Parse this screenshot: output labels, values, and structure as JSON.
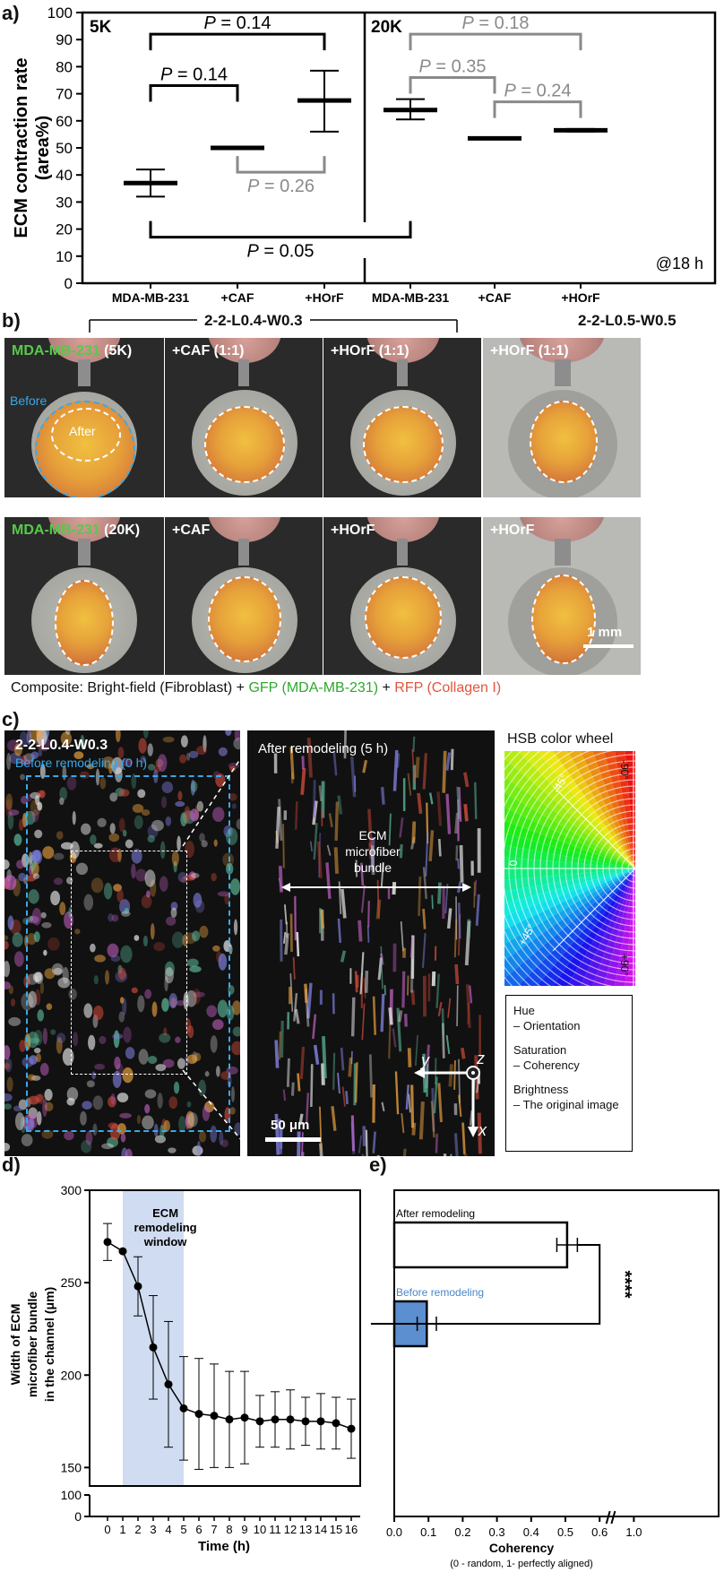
{
  "panel_labels": {
    "a": "a)",
    "b": "b)",
    "c": "c)",
    "d": "d)",
    "e": "e)"
  },
  "chart_data": [
    {
      "panel": "a",
      "type": "scatter",
      "ylabel_line1": "ECM contraction rate",
      "ylabel_line2": "(area%)",
      "ylim": [
        0,
        100
      ],
      "yticks": [
        0,
        10,
        20,
        30,
        40,
        50,
        60,
        70,
        80,
        90,
        100
      ],
      "categories": [
        "MDA-MB-231",
        "+CAF",
        "+HOrF",
        "MDA-MB-231",
        "+CAF",
        "+HOrF"
      ],
      "group_labels": [
        "5K",
        "20K"
      ],
      "series": [
        {
          "values": [
            37,
            50,
            67.5,
            64,
            53.5,
            56.5
          ],
          "error_low": [
            32,
            49.5,
            56,
            60.5,
            53.5,
            56
          ],
          "error_high": [
            42,
            50.5,
            78.5,
            68,
            53.5,
            57
          ]
        }
      ],
      "comparisons": [
        {
          "from": 0,
          "to": 2,
          "p_prefix": "P",
          "p_text": " = 0.14",
          "y": 92,
          "color": "#000000"
        },
        {
          "from": 0,
          "to": 1,
          "p_prefix": "P",
          "p_text": " = 0.14",
          "y": 73,
          "color": "#000000"
        },
        {
          "from": 1,
          "to": 2,
          "p_prefix": "P",
          "p_text": " = 0.26",
          "y": 41,
          "color": "#8a8a8a"
        },
        {
          "from": 3,
          "to": 5,
          "p_prefix": "P",
          "p_text": " = 0.18",
          "y": 92,
          "color": "#8a8a8a"
        },
        {
          "from": 3,
          "to": 4,
          "p_prefix": "P",
          "p_text": " = 0.35",
          "y": 76,
          "color": "#8a8a8a"
        },
        {
          "from": 4,
          "to": 5,
          "p_prefix": "P",
          "p_text": " = 0.24",
          "y": 67,
          "color": "#8a8a8a"
        },
        {
          "from": 0,
          "to": 3,
          "p_prefix": "P",
          "p_text": " = 0.05",
          "y": 17,
          "color": "#000000"
        }
      ],
      "annotation": "@18 h"
    },
    {
      "panel": "d",
      "type": "line",
      "ylabel_lines": [
        "Width of ECM",
        "microfiber bundle",
        "in the channel (μm)"
      ],
      "xlabel": "Time (h)",
      "x": [
        0,
        1,
        2,
        3,
        4,
        5,
        6,
        7,
        8,
        9,
        10,
        11,
        12,
        13,
        14,
        15,
        16
      ],
      "y": [
        272,
        267,
        248,
        215,
        195,
        182,
        179,
        178,
        176,
        177,
        175,
        176,
        176,
        175,
        175,
        174,
        171
      ],
      "err": [
        10,
        0,
        16,
        28,
        34,
        28,
        30,
        28,
        26,
        25,
        14,
        15,
        16,
        13,
        15,
        14,
        16
      ],
      "yticks_upper": [
        150,
        200,
        250,
        300
      ],
      "yticks_lower": [
        0,
        100
      ],
      "shaded_window": [
        1,
        5
      ],
      "shaded_label_lines": [
        "ECM",
        "remodeling",
        "window"
      ]
    },
    {
      "panel": "e",
      "type": "bar",
      "orientation": "horizontal",
      "categories": [
        "After remodeling",
        "Before remodeling"
      ],
      "values": [
        0.505,
        0.095
      ],
      "errors": [
        0.03,
        0.028
      ],
      "bar_colors": [
        "#ffffff",
        "#5b8fd0"
      ],
      "label_colors": [
        "#000000",
        "#4a86c8"
      ],
      "xlabel": "Coherency",
      "xsublabel": "(0 - random, 1- perfectly aligned)",
      "xticks": [
        "0.0",
        "0.1",
        "0.2",
        "0.3",
        "0.4",
        "0.5",
        "0.6",
        "1.0"
      ],
      "significance": "****"
    }
  ],
  "panel_b": {
    "group1": "2-2-L0.4-W0.3",
    "group2": "2-2-L0.5-W0.5",
    "row1": [
      {
        "name": "MDA-MB-231",
        "suffix": " (5K)"
      },
      {
        "name": "",
        "suffix": "+CAF (1:1)"
      },
      {
        "name": "",
        "suffix": "+HOrF (1:1)"
      },
      {
        "name": "",
        "suffix": "+HOrF (1:1)"
      }
    ],
    "row2": [
      {
        "name": "MDA-MB-231",
        "suffix": " (20K)"
      },
      {
        "name": "",
        "suffix": "+CAF"
      },
      {
        "name": "",
        "suffix": "+HOrF"
      },
      {
        "name": "",
        "suffix": "+HOrF"
      }
    ],
    "before_label": "Before",
    "after_label": "After",
    "scale_bar": "1 mm",
    "composite": {
      "prefix": "Composite: Bright-field (Fibroblast) + ",
      "gfp": "GFP (MDA-MB-231)",
      "plus": " + ",
      "rfp": "RFP (Collagen I)"
    }
  },
  "panel_c": {
    "left_title": "2-2-L0.4-W0.3",
    "left_sub": "Before remodeling (0 h)",
    "mid_title": "After remodeling (5 h)",
    "bundle_lines": [
      "ECM",
      "microfiber",
      "bundle"
    ],
    "scale_bar": "50 μm",
    "axes": {
      "x": "x",
      "y": "y",
      "z": "z"
    },
    "wheel_title": "HSB color wheel",
    "wheel_angles": [
      "-45°",
      "0",
      "+45°",
      "-90°",
      "+90°"
    ],
    "legend": [
      {
        "k": "Hue",
        "v": "– Orientation"
      },
      {
        "k": "Saturation",
        "v": "– Coherency"
      },
      {
        "k": "Brightness",
        "v": "– The original image"
      }
    ]
  }
}
